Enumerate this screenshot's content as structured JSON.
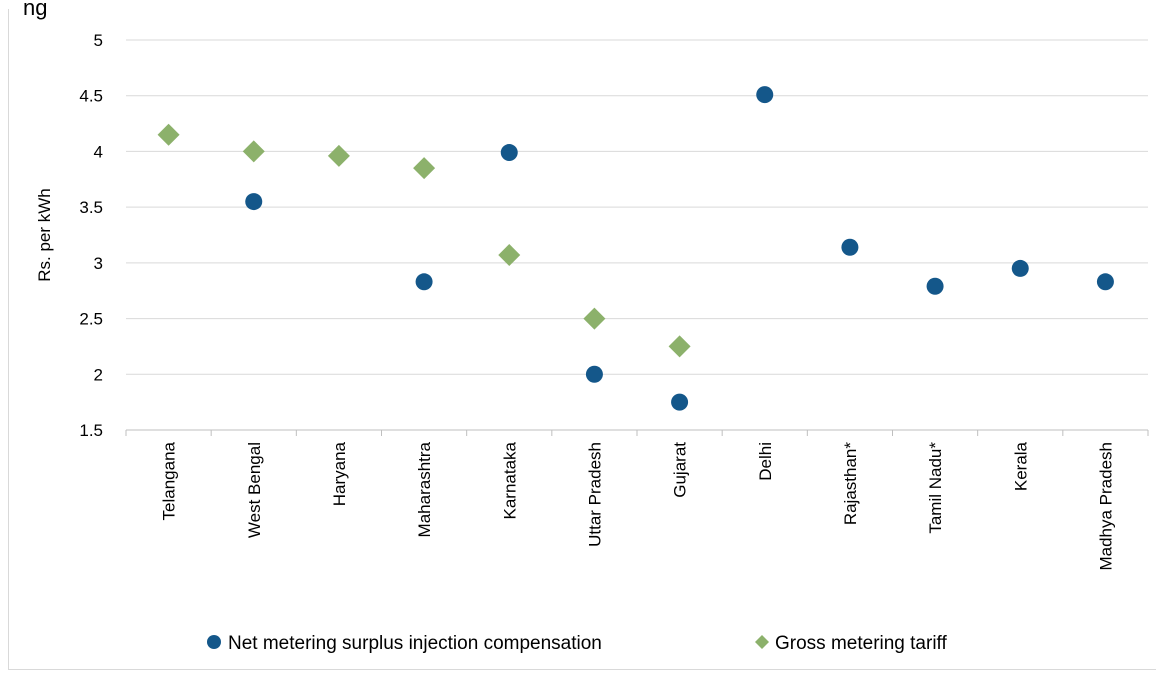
{
  "chart_data": {
    "type": "scatter",
    "title_fragment": "ng",
    "ylabel": "Rs. per kWh",
    "ylim": [
      1.5,
      5
    ],
    "yticks": [
      "1.5",
      "2",
      "2.5",
      "3",
      "3.5",
      "4",
      "4.5",
      "5"
    ],
    "grid": true,
    "legend_position": "bottom",
    "categories": [
      "Telangana",
      "West Bengal",
      "Haryana",
      "Maharashtra",
      "Karnataka",
      "Uttar Pradesh",
      "Gujarat",
      "Delhi",
      "Rajasthan*",
      "Tamil Nadu*",
      "Kerala",
      "Madhya Pradesh"
    ],
    "series": [
      {
        "name": "Net metering surplus injection compensation",
        "marker": "circle",
        "color": "#14578a",
        "values": [
          null,
          3.55,
          null,
          2.83,
          3.99,
          2.0,
          1.75,
          4.51,
          3.14,
          2.79,
          2.95,
          2.83
        ]
      },
      {
        "name": "Gross metering tariff",
        "marker": "diamond",
        "color": "#8cb16b",
        "values": [
          4.15,
          4.0,
          3.96,
          3.85,
          3.07,
          2.5,
          2.25,
          null,
          null,
          null,
          null,
          null
        ]
      }
    ]
  }
}
